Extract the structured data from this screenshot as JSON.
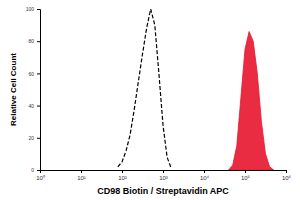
{
  "chart_data": {
    "type": "line",
    "x_label": "CD98 Biotin / Streptavidin APC",
    "y_label": "Relative Cell Count",
    "log": "x",
    "x": [
      79,
      100,
      126,
      158,
      200,
      251,
      316,
      398,
      501,
      631,
      794,
      1000,
      1259,
      1585,
      1995,
      2512,
      3162,
      3981,
      5012,
      6310,
      7943,
      10000,
      12589,
      15849,
      19953,
      25119,
      31623,
      39811,
      50119,
      63096,
      79433,
      100000,
      125893,
      158489,
      199526,
      251189,
      316228,
      398107,
      501187
    ],
    "series": [
      {
        "type": "line",
        "line_style": "dashed",
        "color": "#000000",
        "values": [
          2,
          5,
          12,
          22,
          38,
          55,
          72,
          88,
          100,
          90,
          60,
          28,
          8,
          1,
          null,
          null,
          null,
          null,
          null,
          null,
          null,
          null,
          null,
          null,
          null,
          null,
          null,
          null,
          null,
          null,
          null,
          null,
          null,
          null,
          null,
          null,
          null,
          null,
          null
        ]
      },
      {
        "type": "area",
        "color": "#e8152e",
        "values": [
          null,
          null,
          null,
          null,
          null,
          null,
          null,
          null,
          null,
          null,
          null,
          null,
          null,
          null,
          null,
          null,
          null,
          null,
          null,
          null,
          null,
          null,
          null,
          null,
          null,
          null,
          null,
          0,
          3,
          15,
          45,
          75,
          86,
          80,
          60,
          30,
          10,
          2,
          0
        ]
      }
    ],
    "xlim": [
      1,
      1000000
    ],
    "xticks": [
      {
        "value": 1,
        "label": "10⁰"
      },
      {
        "value": 10,
        "label": "10¹"
      },
      {
        "value": 100,
        "label": "10²"
      },
      {
        "value": 1000,
        "label": "10³"
      },
      {
        "value": 10000,
        "label": "10⁴"
      },
      {
        "value": 100000,
        "label": "10⁵"
      },
      {
        "value": 1000000,
        "label": "10⁶"
      }
    ],
    "ylim": [
      0,
      100
    ],
    "yticks": [
      0,
      20,
      40,
      60,
      80,
      100
    ],
    "grid": false
  }
}
